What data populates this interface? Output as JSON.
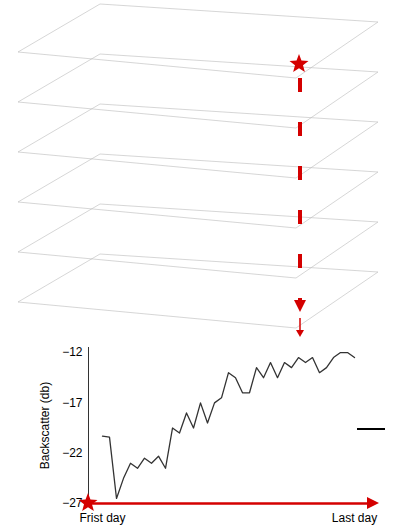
{
  "chart_data": {
    "type": "line",
    "y_label": "Backscatter (db)",
    "categories": [
      "Frist day",
      null,
      null,
      null,
      null,
      null,
      null,
      null,
      null,
      null,
      null,
      null,
      null,
      null,
      null,
      null,
      null,
      null,
      null,
      null,
      null,
      null,
      null,
      null,
      null,
      null,
      null,
      null,
      null,
      null,
      null,
      null,
      null,
      null,
      null,
      null,
      "Last day"
    ],
    "values": [
      -20.3,
      -20.4,
      -26.5,
      -24.5,
      -23,
      -23.5,
      -22.5,
      -23,
      -22.3,
      -23.5,
      -19.5,
      -20,
      -18,
      -19.5,
      -17,
      -19,
      -17,
      -16.5,
      -14,
      -14.5,
      -16,
      -16,
      -13.5,
      -14.5,
      -13,
      -14.5,
      -13,
      -13.5,
      -12.5,
      -13,
      -12.5,
      -14,
      -13.5,
      -12.5,
      -12,
      -12,
      -12.5
    ],
    "color": "#333333",
    "ylim": [
      -27,
      -11.5
    ],
    "yticks": [
      -12,
      -17,
      -22,
      -27
    ],
    "grid": false
  }
}
